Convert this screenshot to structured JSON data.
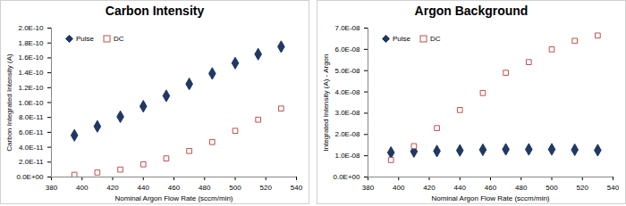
{
  "chart_data": [
    {
      "type": "scatter",
      "title": "Carbon Intensity",
      "x_label": "Nominal Argon Flow Rate (sccm/min)",
      "y_label": "Carbon Integrated Intensity (A)",
      "x": [
        395,
        410,
        425,
        440,
        455,
        470,
        485,
        500,
        515,
        530
      ],
      "series": [
        {
          "name": "Pulse",
          "color": "#1f3864",
          "marker": "diamond",
          "values": [
            5.6e-11,
            6.8e-11,
            8.1e-11,
            9.5e-11,
            1.09e-10,
            1.25e-10,
            1.39e-10,
            1.53e-10,
            1.65e-10,
            1.75e-10
          ]
        },
        {
          "name": "DC",
          "color": "#c0504d",
          "marker": "square_open",
          "values": [
            3e-12,
            6e-12,
            1e-11,
            1.7e-11,
            2.5e-11,
            3.5e-11,
            4.7e-11,
            6.2e-11,
            7.7e-11,
            9.2e-11
          ]
        }
      ],
      "xlim": [
        380,
        540
      ],
      "xticks": [
        380,
        400,
        420,
        440,
        460,
        480,
        500,
        520,
        540
      ],
      "ylim": [
        0,
        2e-10
      ],
      "yticks": [
        {
          "value": 0,
          "label": "0.0E+00"
        },
        {
          "value": 2e-11,
          "label": "2.0E-11"
        },
        {
          "value": 4e-11,
          "label": "4.0E-11"
        },
        {
          "value": 6e-11,
          "label": "6.0E-11"
        },
        {
          "value": 8e-11,
          "label": "8.0E-11"
        },
        {
          "value": 1e-10,
          "label": "1.0E-10"
        },
        {
          "value": 1.2e-10,
          "label": "1.2E-10"
        },
        {
          "value": 1.4e-10,
          "label": "1.4E-10"
        },
        {
          "value": 1.6e-10,
          "label": "1.6E-10"
        },
        {
          "value": 1.8e-10,
          "label": "1.8E-10"
        },
        {
          "value": 2e-10,
          "label": "2.0E-10"
        }
      ],
      "grid": false,
      "legend": "top-left"
    },
    {
      "type": "scatter",
      "title": "Argon Background",
      "x_label": "Nominal Argon Flow Rate (sccm/min)",
      "y_label": "Integrated Intensity (A) - Argon",
      "x": [
        395,
        410,
        425,
        440,
        455,
        470,
        485,
        500,
        515,
        530
      ],
      "series": [
        {
          "name": "Pulse",
          "color": "#1f3864",
          "marker": "diamond",
          "values": [
            1.15e-08,
            1.2e-08,
            1.22e-08,
            1.25e-08,
            1.28e-08,
            1.3e-08,
            1.3e-08,
            1.3e-08,
            1.28e-08,
            1.26e-08
          ]
        },
        {
          "name": "DC",
          "color": "#c0504d",
          "marker": "square_open",
          "values": [
            8e-09,
            1.45e-08,
            2.3e-08,
            3.15e-08,
            3.95e-08,
            4.9e-08,
            5.4e-08,
            6e-08,
            6.4e-08,
            6.65e-08
          ]
        }
      ],
      "xlim": [
        380,
        540
      ],
      "xticks": [
        380,
        400,
        420,
        440,
        460,
        480,
        500,
        520,
        540
      ],
      "ylim": [
        0,
        7e-08
      ],
      "yticks": [
        {
          "value": 0,
          "label": "0.0E+00"
        },
        {
          "value": 1e-08,
          "label": "1.0E-08"
        },
        {
          "value": 2e-08,
          "label": "2.0E-08"
        },
        {
          "value": 3e-08,
          "label": "3.0E-08"
        },
        {
          "value": 4e-08,
          "label": "4.0E-08"
        },
        {
          "value": 5e-08,
          "label": "5.0E-08"
        },
        {
          "value": 6e-08,
          "label": "6.0E-08"
        },
        {
          "value": 7e-08,
          "label": "7.0E-08"
        }
      ],
      "grid": false,
      "legend": "top-left"
    }
  ]
}
